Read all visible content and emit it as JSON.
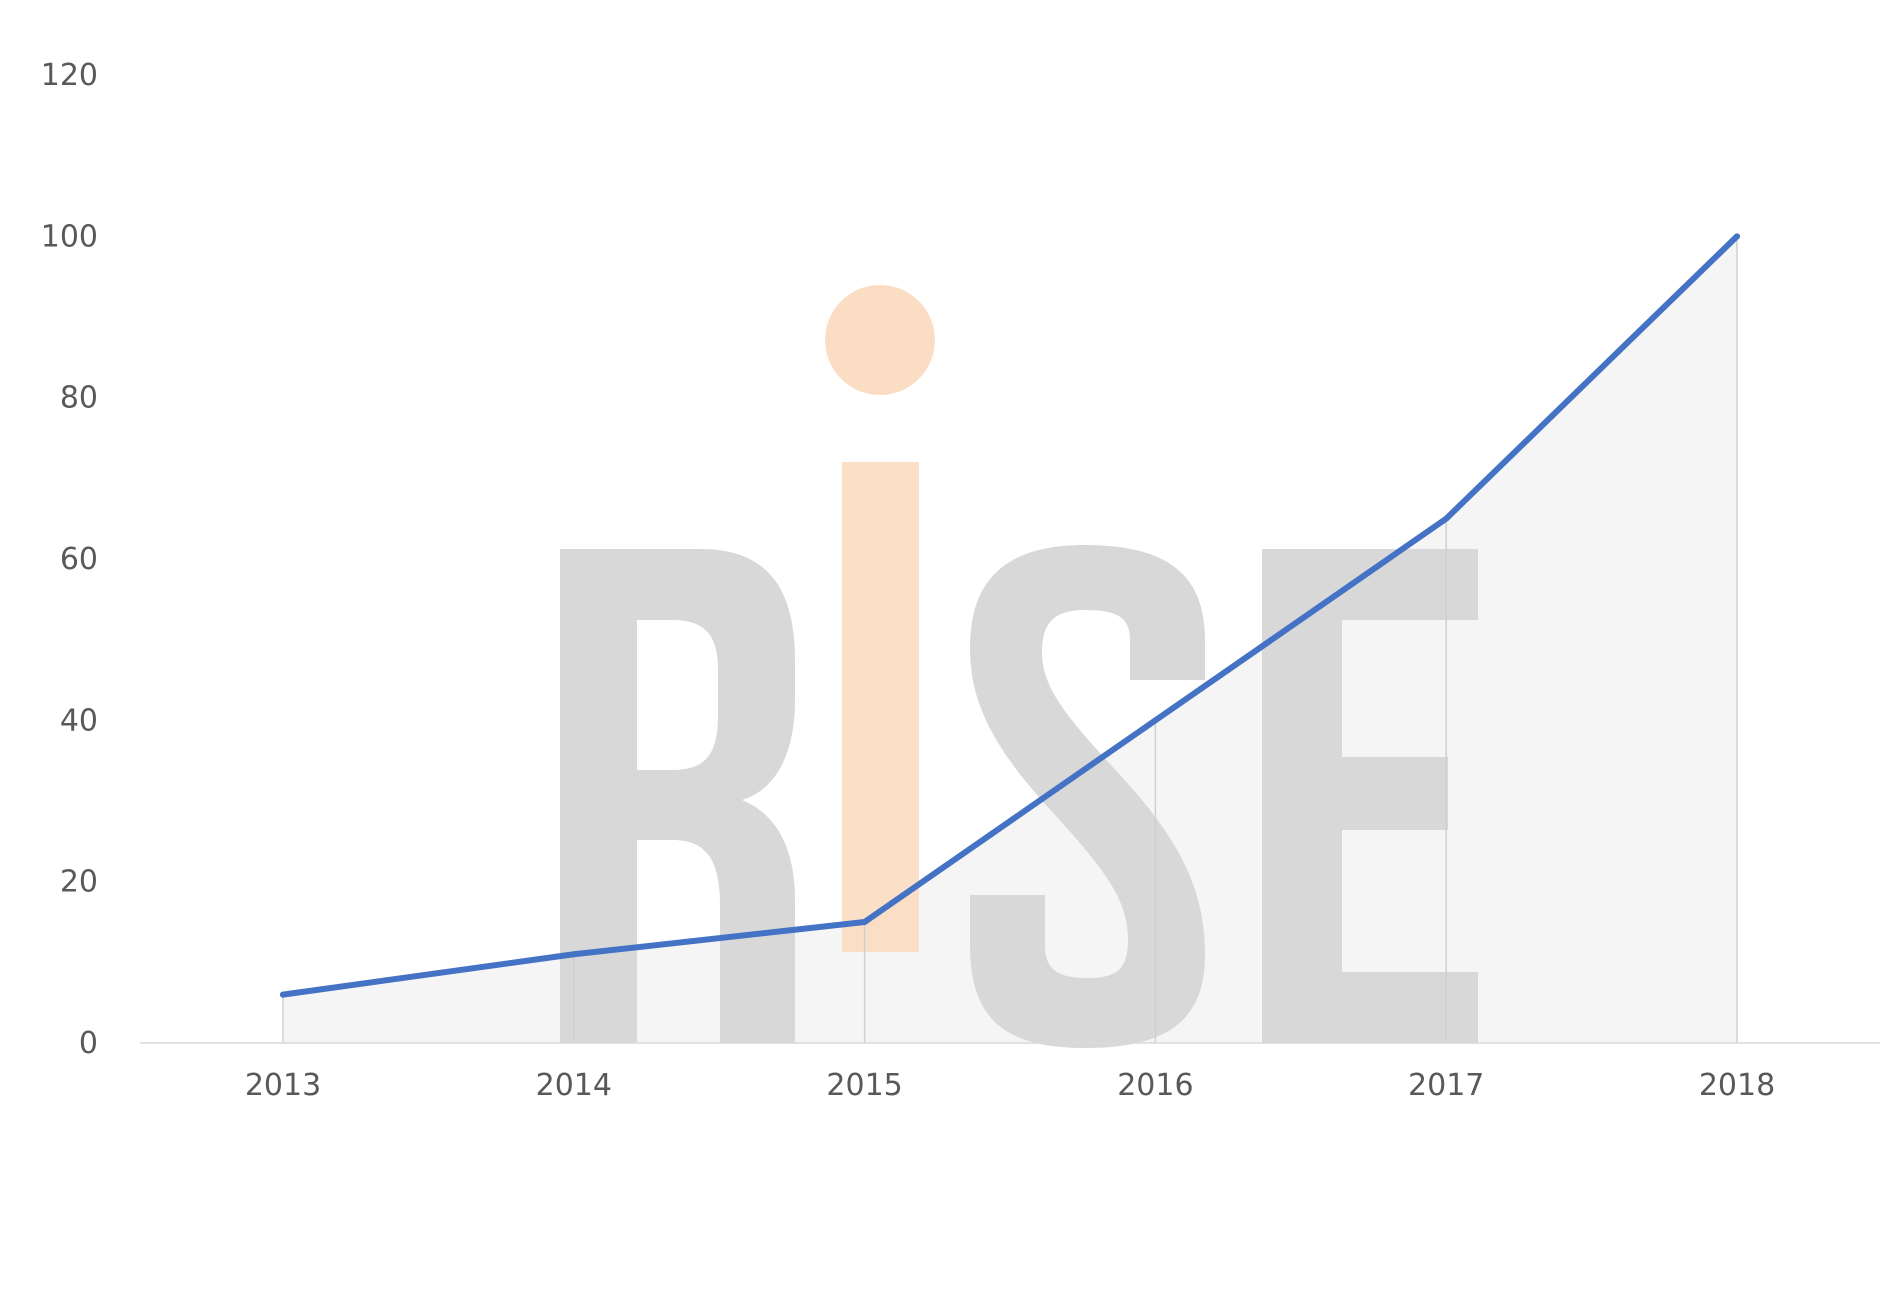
{
  "chart_data": {
    "type": "line",
    "title": "",
    "xlabel": "",
    "ylabel": "",
    "categories": [
      "2013",
      "2014",
      "2015",
      "2016",
      "2017",
      "2018"
    ],
    "series": [
      {
        "values": [
          6,
          11,
          15,
          40,
          65,
          100
        ]
      }
    ],
    "ylim": [
      0,
      120
    ],
    "yticks": [
      "0",
      "20",
      "40",
      "60",
      "80",
      "100",
      "120"
    ],
    "grid": false,
    "drop_lines": true,
    "area_fill_under_line": true,
    "colors": {
      "line": "#4472c4",
      "area_fill": "#f2f2f2",
      "tick_label": "#595959",
      "axis": "#d9d9d9",
      "watermark_gray": "#d6d6d6",
      "watermark_accent": "#fbd9bd"
    }
  },
  "watermark": {
    "text": "RiSE"
  }
}
